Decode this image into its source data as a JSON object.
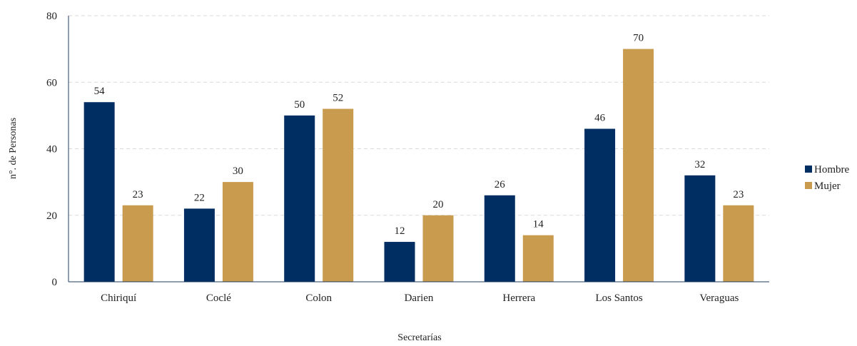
{
  "chart_data": {
    "type": "bar",
    "title": "",
    "xlabel": "Secretarías",
    "ylabel": "n°. de Personas",
    "ylim": [
      0,
      80
    ],
    "yticks": [
      0,
      20,
      40,
      60,
      80
    ],
    "grid": "horizontal-dashed",
    "legend_position": "right",
    "categories": [
      "Chiriquí",
      "Coclé",
      "Colon",
      "Darien",
      "Herrera",
      "Los Santos",
      "Veraguas"
    ],
    "series": [
      {
        "name": "Hombre",
        "color": "#002d62",
        "values": [
          54,
          22,
          50,
          12,
          26,
          46,
          32
        ]
      },
      {
        "name": "Mujer",
        "color": "#c89b4e",
        "values": [
          23,
          30,
          52,
          20,
          14,
          70,
          23
        ]
      }
    ]
  }
}
